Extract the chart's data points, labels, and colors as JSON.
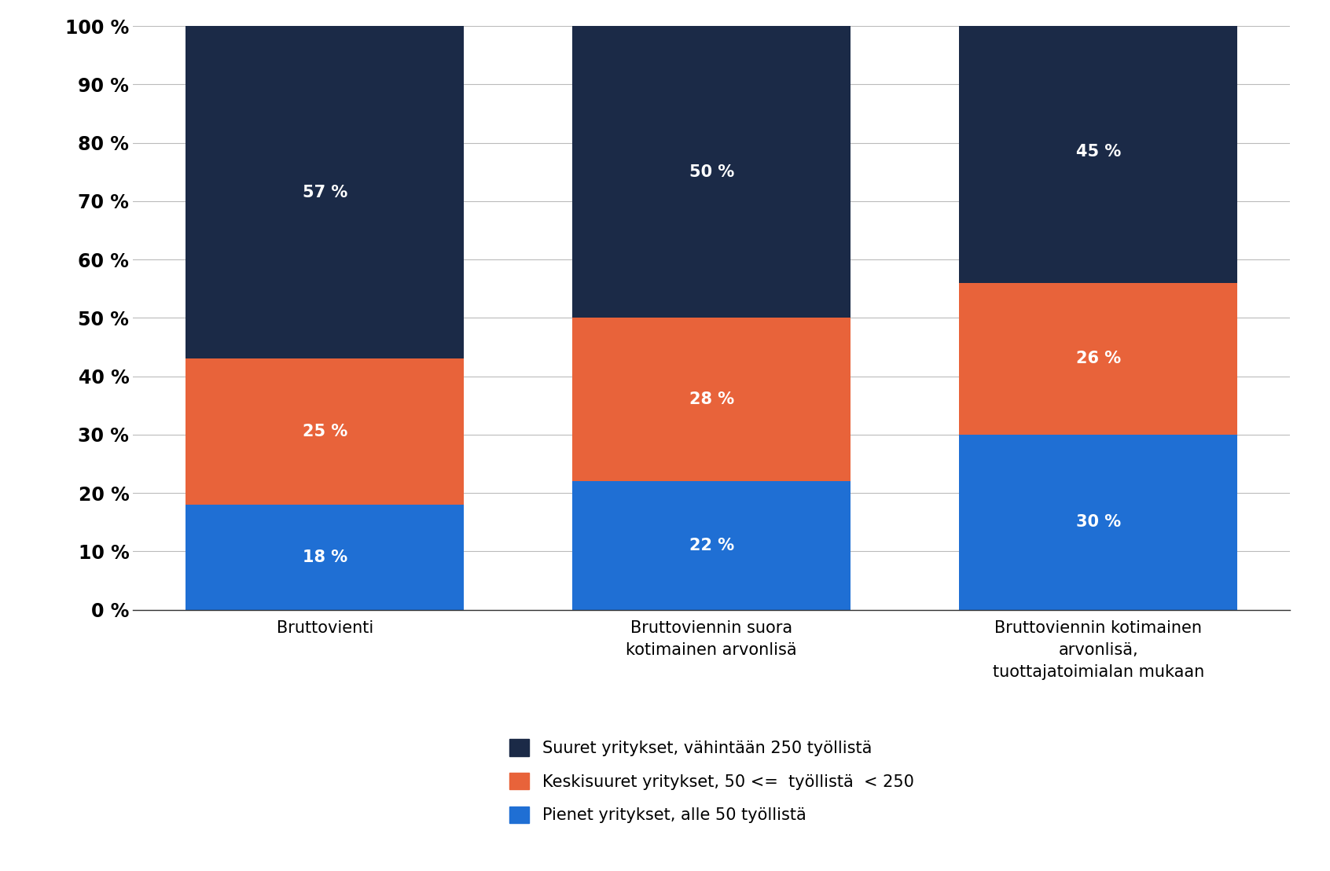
{
  "categories": [
    "Bruttovienti",
    "Bruttoviennin suora\nkotimainen arvonlisä",
    "Bruttoviennin kotimainen\narvonlisä,\ntuottajatoimialan mukaan"
  ],
  "small": [
    18,
    22,
    30
  ],
  "medium": [
    25,
    28,
    26
  ],
  "large": [
    57,
    50,
    45
  ],
  "small_labels": [
    "18 %",
    "22 %",
    "30 %"
  ],
  "medium_labels": [
    "25 %",
    "28 %",
    "26 %"
  ],
  "large_labels": [
    "57 %",
    "50 %",
    "45 %"
  ],
  "color_small": "#1F6FD4",
  "color_medium": "#E8633A",
  "color_large": "#1B2A47",
  "legend_large": "Suuret yritykset, vähintään 250 työllistä",
  "legend_medium": "Keskisuuret yritykset, 50 <=  työllistä  < 250",
  "legend_small": "Pienet yritykset, alle 50 työllistä",
  "yticks": [
    0,
    10,
    20,
    30,
    40,
    50,
    60,
    70,
    80,
    90,
    100
  ],
  "ytick_labels": [
    "0 %",
    "10 %",
    "20 %",
    "30 %",
    "40 %",
    "50 %",
    "60 %",
    "70 %",
    "80 %",
    "90 %",
    "100 %"
  ],
  "bar_width": 0.72,
  "label_fontsize": 15,
  "tick_fontsize": 17,
  "legend_fontsize": 15,
  "xlabel_fontsize": 15,
  "background_color": "#ffffff",
  "text_color": "#ffffff",
  "grid_color": "#bbbbbb"
}
